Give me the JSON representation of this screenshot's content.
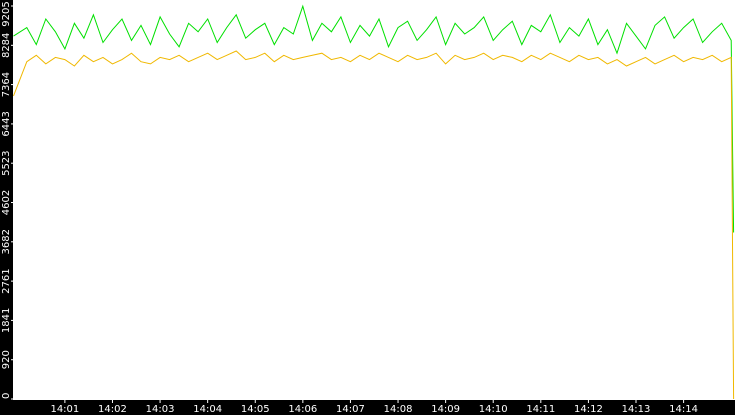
{
  "chart_data": {
    "type": "line",
    "x": [
      -0.08,
      0.2,
      0.4,
      0.6,
      0.8,
      1.0,
      1.2,
      1.4,
      1.6,
      1.8,
      2.0,
      2.2,
      2.4,
      2.6,
      2.8,
      3.0,
      3.2,
      3.4,
      3.6,
      3.8,
      4.0,
      4.2,
      4.4,
      4.6,
      4.8,
      5.0,
      5.2,
      5.4,
      5.6,
      5.8,
      6.0,
      6.2,
      6.4,
      6.6,
      6.8,
      7.0,
      7.2,
      7.4,
      7.6,
      7.8,
      8.0,
      8.2,
      8.4,
      8.6,
      8.8,
      9.0,
      9.2,
      9.4,
      9.6,
      9.8,
      10.0,
      10.2,
      10.4,
      10.6,
      10.8,
      11.0,
      11.2,
      11.4,
      11.6,
      11.8,
      12.0,
      12.2,
      12.4,
      12.6,
      12.8,
      13.0,
      13.2,
      13.4,
      13.6,
      13.8,
      14.0,
      14.2,
      14.4,
      14.6,
      14.8,
      15.0,
      15.05
    ],
    "series": [
      {
        "color": "#00e000",
        "values": [
          8500,
          8700,
          8300,
          8900,
          8600,
          8200,
          8800,
          8450,
          9000,
          8350,
          8650,
          8900,
          8400,
          8750,
          8300,
          8950,
          8550,
          8250,
          8800,
          8600,
          8900,
          8350,
          8700,
          9000,
          8450,
          8650,
          8800,
          8300,
          8700,
          8550,
          9200,
          8400,
          8800,
          8600,
          8950,
          8350,
          8750,
          8500,
          8900,
          8250,
          8700,
          8850,
          8400,
          8650,
          8950,
          8300,
          8800,
          8550,
          8700,
          8950,
          8400,
          8650,
          8850,
          8300,
          8750,
          8600,
          9000,
          8350,
          8700,
          8500,
          8900,
          8300,
          8650,
          8100,
          8800,
          8500,
          8200,
          8750,
          8950,
          8450,
          8700,
          8900,
          8350,
          8600,
          8800,
          8400,
          3900
        ]
      },
      {
        "color": "#f0b800",
        "values": [
          7100,
          7900,
          8050,
          7850,
          8000,
          7950,
          7800,
          8050,
          7900,
          8000,
          7850,
          7950,
          8100,
          7900,
          7850,
          8000,
          7950,
          8050,
          7900,
          8000,
          8100,
          7950,
          8050,
          8150,
          7950,
          8000,
          8100,
          7900,
          8050,
          7950,
          8000,
          8050,
          8100,
          7950,
          8000,
          7900,
          8050,
          7950,
          8100,
          8000,
          7900,
          8050,
          7950,
          8000,
          8100,
          7850,
          8050,
          7950,
          8000,
          8100,
          7950,
          8050,
          8000,
          7900,
          8050,
          7950,
          8100,
          8000,
          7900,
          8050,
          7950,
          8000,
          7850,
          7950,
          7800,
          7900,
          8000,
          7850,
          7950,
          8050,
          7900,
          8000,
          7950,
          8050,
          7900,
          8000,
          0
        ]
      }
    ],
    "xlim": [
      -0.09,
      15.08
    ],
    "xticks": [
      {
        "value": 1,
        "label": "14:01"
      },
      {
        "value": 2,
        "label": "14:02"
      },
      {
        "value": 3,
        "label": "14:03"
      },
      {
        "value": 4,
        "label": "14:04"
      },
      {
        "value": 5,
        "label": "14:05"
      },
      {
        "value": 6,
        "label": "14:06"
      },
      {
        "value": 7,
        "label": "14:07"
      },
      {
        "value": 8,
        "label": "14:08"
      },
      {
        "value": 9,
        "label": "14:09"
      },
      {
        "value": 10,
        "label": "14:10"
      },
      {
        "value": 11,
        "label": "14:11"
      },
      {
        "value": 12,
        "label": "14:12"
      },
      {
        "value": 13,
        "label": "14:13"
      },
      {
        "value": 14,
        "label": "14:14"
      }
    ],
    "ylim": [
      0,
      9205
    ],
    "yticks": [
      0,
      920,
      1841,
      2761,
      3682,
      4602,
      5523,
      6443,
      7364,
      8284,
      9205
    ]
  }
}
